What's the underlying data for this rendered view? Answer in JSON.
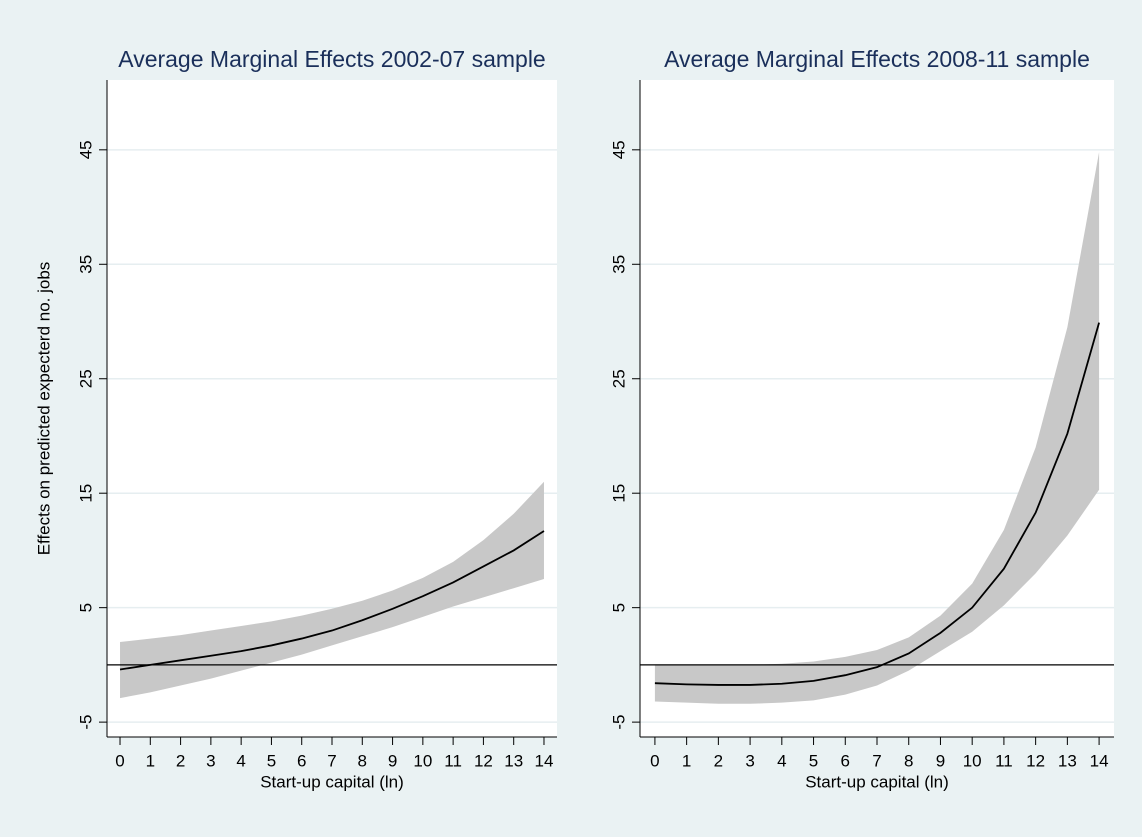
{
  "chart_data": [
    {
      "type": "line_band",
      "title": "Average Marginal Effects 2002-07 sample",
      "xlabel": "Start-up capital (ln)",
      "ylabel": "Effects on predicted expecterd no. jobs",
      "x": [
        0,
        1,
        2,
        3,
        4,
        5,
        6,
        7,
        8,
        9,
        10,
        11,
        12,
        13,
        14
      ],
      "values": [
        -0.4,
        0,
        0.4,
        0.8,
        1.2,
        1.7,
        2.3,
        3.0,
        3.9,
        4.9,
        6.0,
        7.2,
        8.6,
        10.0,
        11.7
      ],
      "ci_upper": [
        2.0,
        2.3,
        2.6,
        3.0,
        3.4,
        3.8,
        4.3,
        4.9,
        5.6,
        6.5,
        7.6,
        9.0,
        10.9,
        13.2,
        16.0
      ],
      "ci_lower": [
        -2.9,
        -2.4,
        -1.8,
        -1.2,
        -0.5,
        0.2,
        0.9,
        1.7,
        2.5,
        3.3,
        4.2,
        5.1,
        5.9,
        6.7,
        7.5
      ],
      "color": "#000000",
      "band_color": "#c8c8c8",
      "reference_line": 0,
      "xlim": [
        -0.43,
        14.43
      ],
      "xticks": [
        0,
        1,
        2,
        3,
        4,
        5,
        6,
        7,
        8,
        9,
        10,
        11,
        12,
        13,
        14
      ],
      "ylim": [
        -6.3,
        51.1
      ],
      "yticks": [
        -5,
        5,
        15,
        25,
        35,
        45
      ],
      "grid": true
    },
    {
      "type": "line_band",
      "title": "Average Marginal Effects 2008-11 sample",
      "xlabel": "Start-up capital (ln)",
      "x": [
        0,
        1,
        2,
        3,
        4,
        5,
        6,
        7,
        8,
        9,
        10,
        11,
        12,
        13,
        14
      ],
      "values": [
        -1.6,
        -1.7,
        -1.75,
        -1.75,
        -1.65,
        -1.4,
        -0.9,
        -0.2,
        1.0,
        2.8,
        5.0,
        8.4,
        13.3,
        20.2,
        29.9
      ],
      "ci_upper": [
        0,
        0,
        0,
        0,
        0.1,
        0.3,
        0.7,
        1.3,
        2.4,
        4.3,
        7.1,
        11.8,
        19.0,
        29.5,
        44.8
      ],
      "ci_lower": [
        -3.2,
        -3.3,
        -3.4,
        -3.4,
        -3.3,
        -3.1,
        -2.6,
        -1.8,
        -0.5,
        1.2,
        2.9,
        5.2,
        8.0,
        11.3,
        15.3
      ],
      "color": "#000000",
      "band_color": "#c8c8c8",
      "reference_line": 0,
      "xlim": [
        -0.47,
        14.47
      ],
      "xticks": [
        0,
        1,
        2,
        3,
        4,
        5,
        6,
        7,
        8,
        9,
        10,
        11,
        12,
        13,
        14
      ],
      "ylim": [
        -6.3,
        51.1
      ],
      "yticks": [
        -5,
        5,
        15,
        25,
        35,
        45
      ],
      "grid": true
    }
  ]
}
